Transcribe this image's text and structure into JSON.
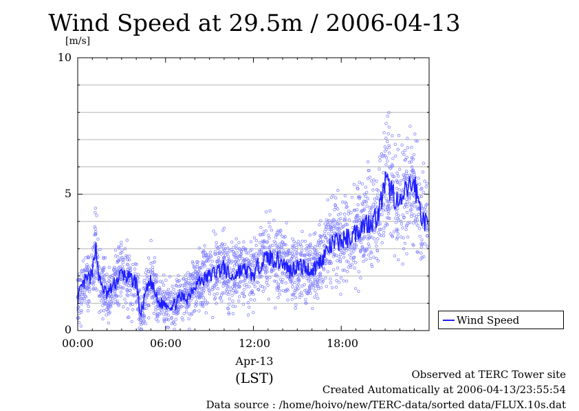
{
  "chart_data": {
    "type": "scatter",
    "title": "Wind Speed at 29.5m / 2006-04-13",
    "ylabel": "[m/s]",
    "xlabel": "(LST)",
    "date_label": "Apr-13",
    "ylim": [
      0,
      10
    ],
    "xlim_hours": [
      0,
      24
    ],
    "y_ticks": [
      "0",
      "5",
      "10"
    ],
    "x_ticks": [
      "00:00",
      "06:00",
      "12:00",
      "18:00"
    ],
    "grid": "horizontal every 1 m/s",
    "legend": {
      "label": "Wind Speed",
      "placement": "right-bottom, outside plot"
    },
    "colors": {
      "line": "#1e1eff",
      "points": "#8080ff",
      "grid": "#b4b4b4"
    },
    "series": [
      {
        "name": "Wind Speed",
        "x_hours": [
          0.0,
          0.5,
          1.0,
          1.2,
          1.5,
          2.0,
          2.5,
          3.0,
          3.5,
          4.0,
          4.3,
          4.6,
          5.0,
          5.5,
          6.0,
          6.5,
          7.0,
          7.5,
          8.0,
          9.0,
          9.5,
          10.0,
          10.5,
          11.0,
          11.5,
          12.0,
          12.5,
          13.0,
          13.5,
          14.0,
          14.5,
          15.0,
          15.5,
          16.0,
          16.5,
          17.0,
          17.5,
          18.0,
          18.5,
          19.0,
          19.5,
          20.0,
          20.5,
          21.0,
          21.5,
          22.0,
          22.5,
          23.0,
          23.5,
          23.9
        ],
        "values": [
          1.2,
          1.8,
          2.0,
          3.2,
          1.8,
          1.3,
          1.7,
          2.1,
          1.9,
          1.8,
          0.5,
          1.3,
          1.8,
          1.0,
          1.0,
          0.9,
          1.2,
          1.2,
          1.7,
          2.0,
          2.2,
          2.3,
          1.9,
          2.2,
          2.2,
          2.0,
          2.5,
          2.7,
          2.6,
          2.5,
          2.2,
          2.4,
          2.3,
          2.2,
          2.5,
          2.9,
          3.2,
          3.3,
          3.4,
          3.6,
          3.9,
          4.0,
          4.2,
          5.4,
          5.1,
          4.5,
          5.2,
          5.4,
          4.2,
          3.8
        ]
      }
    ]
  },
  "footer": {
    "site": "Observed at TERC Tower site",
    "created": "Created Automatically at 2006-04-13/23:55:54",
    "source": "Data source : /home/hoivo/new/TERC-data/sorted data/FLUX.10s.dat"
  }
}
